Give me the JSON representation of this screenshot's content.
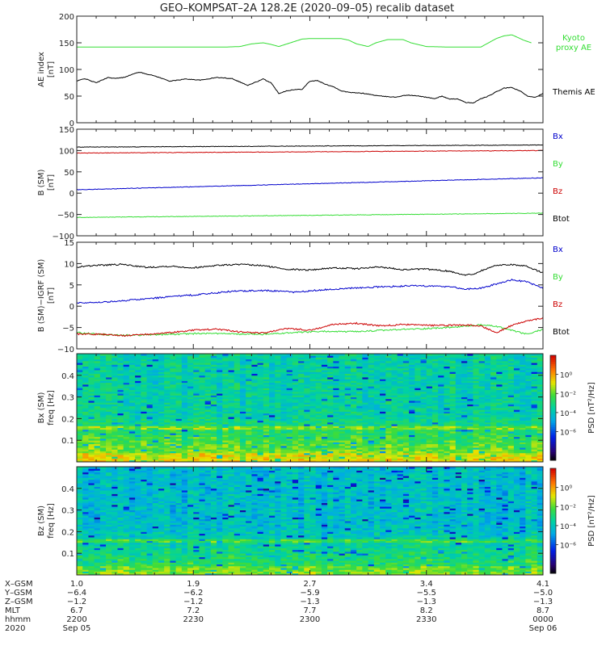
{
  "figure": {
    "title": "GEO–KOMPSAT–2A 128.2E (2020–09–05) recalib dataset"
  },
  "chart_data": [
    {
      "type": "line",
      "ylabel": [
        "AE index",
        "[nT]"
      ],
      "ylim": [
        0,
        200
      ],
      "yticks": [
        0,
        50,
        100,
        150,
        200
      ],
      "ytick_labels": [
        "0",
        "50",
        "100",
        "150",
        "200"
      ],
      "x_range": [
        0,
        120
      ],
      "series": [
        {
          "name": "Kyoto proxy AE",
          "color": "#33dd33",
          "x": [
            0,
            8,
            16,
            24,
            32,
            38,
            42,
            45,
            48,
            50,
            52,
            55,
            58,
            60,
            62,
            64,
            68,
            70,
            72,
            75,
            77,
            80,
            84,
            86,
            90,
            96,
            104,
            108,
            110,
            112,
            115,
            117
          ],
          "y": [
            142,
            142,
            142,
            142,
            142,
            142,
            143,
            148,
            150,
            147,
            143,
            150,
            157,
            158,
            158,
            158,
            158,
            155,
            148,
            143,
            150,
            156,
            156,
            150,
            143,
            142,
            142,
            158,
            163,
            165,
            155,
            150
          ]
        },
        {
          "name": "Themis AE",
          "color": "#000000",
          "x": [
            0,
            2,
            5,
            8,
            10,
            12,
            16,
            20,
            24,
            28,
            32,
            36,
            40,
            44,
            48,
            50,
            52,
            54,
            56,
            58,
            60,
            62,
            64,
            66,
            68,
            70,
            74,
            78,
            82,
            85,
            88,
            90,
            92,
            94,
            96,
            98,
            100,
            102,
            104,
            106,
            108,
            110,
            112,
            114,
            116,
            118,
            120
          ],
          "y": [
            78,
            83,
            75,
            85,
            83,
            85,
            95,
            88,
            78,
            82,
            80,
            85,
            83,
            70,
            82,
            75,
            55,
            60,
            62,
            63,
            78,
            79,
            72,
            68,
            60,
            57,
            55,
            50,
            48,
            52,
            50,
            48,
            45,
            50,
            44,
            45,
            38,
            37,
            45,
            50,
            58,
            65,
            66,
            60,
            50,
            48,
            55
          ]
        }
      ]
    },
    {
      "type": "line",
      "ylabel": [
        "B (SM)",
        "[nT]"
      ],
      "ylim": [
        -100,
        150
      ],
      "yticks": [
        -100,
        -50,
        0,
        50,
        100,
        150
      ],
      "ytick_labels": [
        "−100",
        "−50",
        "0",
        "50",
        "100",
        "150"
      ],
      "x_range": [
        0,
        120
      ],
      "series": [
        {
          "name": "Bx",
          "color": "#0000cc",
          "x": [
            0,
            120
          ],
          "y": [
            8,
            36
          ]
        },
        {
          "name": "By",
          "color": "#33dd33",
          "x": [
            0,
            120
          ],
          "y": [
            -57,
            -47
          ]
        },
        {
          "name": "Bz",
          "color": "#cc0000",
          "x": [
            0,
            120
          ],
          "y": [
            94,
            100
          ]
        },
        {
          "name": "Btot",
          "color": "#000000",
          "x": [
            0,
            120
          ],
          "y": [
            108,
            113
          ]
        }
      ]
    },
    {
      "type": "line",
      "ylabel": [
        "B (SM)−IGRF (SM)",
        "[nT]"
      ],
      "ylim": [
        -10,
        15
      ],
      "yticks": [
        -10,
        -5,
        0,
        5,
        10,
        15
      ],
      "ytick_labels": [
        "−10",
        "−5",
        "0",
        "5",
        "10",
        "15"
      ],
      "x_range": [
        0,
        120
      ],
      "series": [
        {
          "name": "Bx",
          "color": "#0000cc",
          "x": [
            0,
            8,
            16,
            24,
            32,
            40,
            48,
            56,
            64,
            72,
            80,
            88,
            96,
            100,
            104,
            108,
            112,
            116,
            120
          ],
          "y": [
            0.8,
            1.0,
            1.6,
            2.2,
            2.8,
            3.5,
            3.7,
            3.3,
            3.9,
            4.3,
            4.6,
            4.8,
            4.6,
            4.0,
            4.2,
            5.2,
            6.2,
            5.7,
            4.2
          ]
        },
        {
          "name": "By",
          "color": "#33dd33",
          "x": [
            0,
            8,
            16,
            24,
            32,
            40,
            48,
            56,
            64,
            72,
            80,
            88,
            96,
            104,
            108,
            112,
            116,
            120
          ],
          "y": [
            -6.2,
            -6.7,
            -6.8,
            -6.6,
            -6.4,
            -6.5,
            -6.6,
            -6.2,
            -5.9,
            -6.0,
            -5.6,
            -5.3,
            -5.0,
            -4.4,
            -4.7,
            -5.7,
            -6.6,
            -5.4
          ]
        },
        {
          "name": "Bz",
          "color": "#cc0000",
          "x": [
            0,
            6,
            12,
            18,
            24,
            30,
            36,
            42,
            48,
            54,
            60,
            66,
            72,
            78,
            84,
            90,
            96,
            100,
            104,
            108,
            112,
            116,
            120
          ],
          "y": [
            -6.5,
            -6.6,
            -6.9,
            -6.6,
            -6.2,
            -5.6,
            -5.4,
            -6.0,
            -6.3,
            -5.2,
            -5.6,
            -4.3,
            -4.0,
            -4.6,
            -4.3,
            -4.5,
            -4.5,
            -4.4,
            -4.6,
            -6.2,
            -4.5,
            -3.4,
            -2.8
          ]
        },
        {
          "name": "Btot",
          "color": "#000000",
          "x": [
            0,
            6,
            12,
            18,
            24,
            30,
            36,
            42,
            48,
            54,
            60,
            66,
            72,
            78,
            84,
            90,
            96,
            100,
            102,
            104,
            108,
            112,
            116,
            120
          ],
          "y": [
            9.2,
            9.6,
            9.8,
            9.1,
            9.4,
            9.0,
            9.6,
            9.8,
            9.5,
            8.7,
            8.5,
            9.0,
            8.8,
            9.2,
            8.6,
            8.7,
            8.2,
            7.3,
            7.5,
            8.3,
            9.6,
            9.8,
            9.3,
            7.8
          ]
        }
      ]
    },
    {
      "type": "heatmap",
      "component": "Bx (SM)",
      "ylabel": [
        "Bx (SM)",
        "freq [Hz]"
      ],
      "ylim": [
        0,
        0.5
      ],
      "yticks": [
        0.1,
        0.2,
        0.3,
        0.4
      ],
      "ytick_labels": [
        "0.1",
        "0.2",
        "0.3",
        "0.4"
      ],
      "colorbar_label": "PSD [nT²/Hz]",
      "colorbar_range_log10": [
        -9,
        2
      ],
      "colorbar_ticks": [
        "10⁰",
        "10⁻²",
        "10⁻⁴",
        "10⁻⁶"
      ],
      "high_freq_log10_psd": -3.6,
      "low_freq_log10_psd": -1.3,
      "bright_band_hz": 0.16
    },
    {
      "type": "heatmap",
      "component": "Bz (SM)",
      "ylabel": [
        "Bz (SM)",
        "freq [Hz]"
      ],
      "ylim": [
        0,
        0.5
      ],
      "yticks": [
        0.1,
        0.2,
        0.3,
        0.4
      ],
      "ytick_labels": [
        "0.1",
        "0.2",
        "0.3",
        "0.4"
      ],
      "colorbar_label": "PSD [nT²/Hz]",
      "colorbar_range_log10": [
        -9,
        2
      ],
      "colorbar_ticks": [
        "10⁰",
        "10⁻²",
        "10⁻⁴",
        "10⁻⁶"
      ],
      "high_freq_log10_psd": -4.2,
      "low_freq_log10_psd": -2.2,
      "bright_band_hz": 0.16
    }
  ],
  "ephemeris": {
    "row_labels": [
      "X–GSM",
      "Y–GSM",
      "Z–GSM",
      "MLT",
      "hhmm",
      "2020"
    ],
    "columns": [
      {
        "x": 0,
        "values": [
          "1.0",
          "−6.4",
          "−1.2",
          "6.7",
          "2200",
          "Sep 05"
        ]
      },
      {
        "x": 30,
        "values": [
          "1.9",
          "−6.2",
          "−1.2",
          "7.2",
          "2230",
          ""
        ]
      },
      {
        "x": 60,
        "values": [
          "2.7",
          "−5.9",
          "−1.3",
          "7.7",
          "2300",
          ""
        ]
      },
      {
        "x": 90,
        "values": [
          "3.4",
          "−5.5",
          "−1.3",
          "8.2",
          "2330",
          ""
        ]
      },
      {
        "x": 120,
        "values": [
          "4.1",
          "−5.0",
          "−1.3",
          "8.7",
          "0000",
          "Sep 06"
        ]
      }
    ]
  }
}
